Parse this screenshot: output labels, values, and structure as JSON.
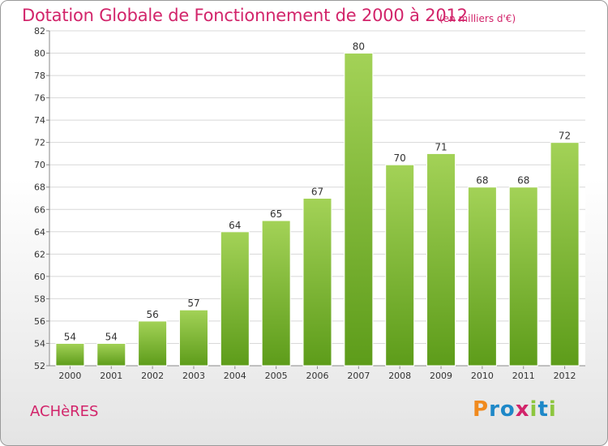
{
  "title": "Dotation Globale de Fonctionnement de 2000 à 2012",
  "subtitle": "(en milliers d'€)",
  "commune": "ACHèRES",
  "brand": {
    "letters": [
      "P",
      "r",
      "o",
      "x",
      "i",
      "t",
      "i"
    ],
    "colors": [
      "#f08a1e",
      "#1e88c8",
      "#1e88c8",
      "#d2246a",
      "#8dc63f",
      "#1e88c8",
      "#8dc63f"
    ]
  },
  "colors": {
    "accent": "#d2246a",
    "bar_light": "#a3d257",
    "bar_dark": "#5d9c1a",
    "grid": "#d8d8d8",
    "axis": "#8a8a8a",
    "text": "#333333"
  },
  "chart_data": {
    "type": "bar",
    "categories": [
      "2000",
      "2001",
      "2002",
      "2003",
      "2004",
      "2005",
      "2006",
      "2007",
      "2008",
      "2009",
      "2010",
      "2011",
      "2012"
    ],
    "values": [
      54,
      54,
      56,
      57,
      64,
      65,
      67,
      80,
      70,
      71,
      68,
      68,
      72
    ],
    "ylim": [
      52,
      82
    ],
    "yticks": [
      52,
      54,
      56,
      58,
      60,
      62,
      64,
      66,
      68,
      70,
      72,
      74,
      76,
      78,
      80,
      82
    ],
    "grid": true,
    "data_labels": true
  }
}
